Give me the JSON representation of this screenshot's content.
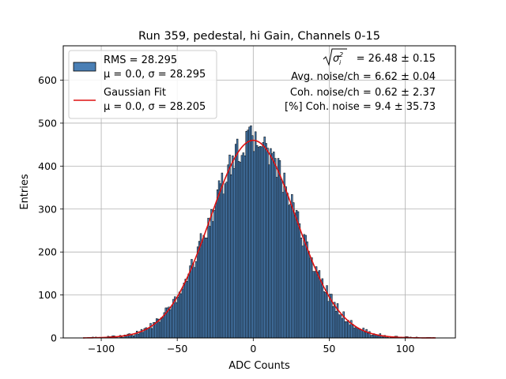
{
  "chart_data": {
    "type": "bar",
    "title": "Run 359, pedestal, hi Gain, Channels 0-15",
    "xlabel": "ADC Counts",
    "ylabel": "Entries",
    "xlim": [
      -125,
      133
    ],
    "ylim": [
      0,
      680
    ],
    "xticks": [
      -100,
      -50,
      0,
      50,
      100
    ],
    "yticks": [
      0,
      100,
      200,
      300,
      400,
      500,
      600
    ],
    "grid": true,
    "legend_position": "top-left",
    "histogram": {
      "name": "RMS = 28.295",
      "name_line2": "μ = 0.0, σ = 28.295",
      "color": "#4a7fb5",
      "edge_color": "#000000",
      "bin_width": 1,
      "bin_start": -112,
      "bin_end": 120,
      "rms": 28.295,
      "mu": 0.0,
      "sigma": 28.295,
      "peak_entries": 462,
      "values": []
    },
    "fit": {
      "name": "Gaussian Fit",
      "name_line2": "μ = 0.0, σ = 28.205",
      "color": "#dd1111",
      "mu": 0.0,
      "sigma": 28.205,
      "amplitude": 460
    },
    "annotations": {
      "sigma_label": "= 26.48 ± 0.15",
      "avg_noise": "Avg. noise/ch = 6.62 ± 0.04",
      "coh_noise": "Coh. noise/ch = 0.62 ± 2.37",
      "coh_noise_pct": "[%] Coh. noise = 9.4 ± 35.73"
    }
  }
}
